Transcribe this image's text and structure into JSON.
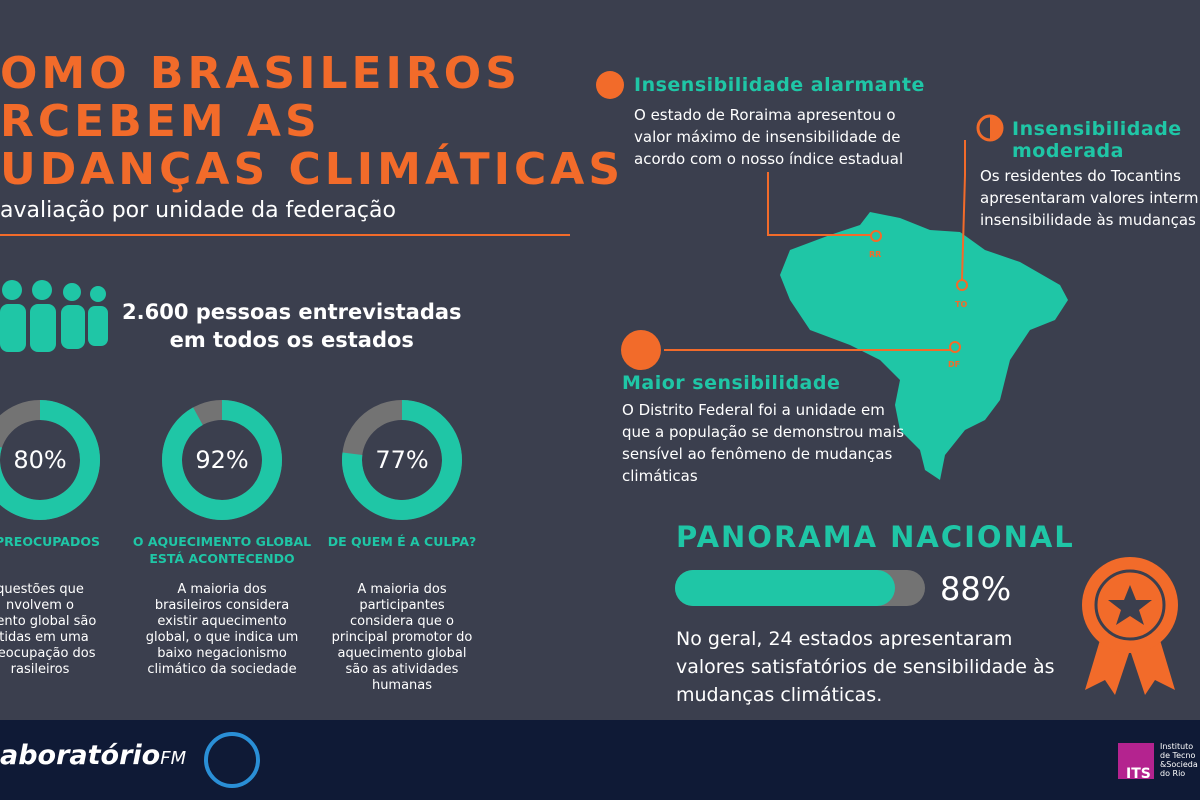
{
  "header": {
    "title_lines": [
      "OMO BRASILEIROS",
      "RCEBEM AS",
      "UDANÇAS CLIMÁTICAS"
    ],
    "subtitle": "avaliação por unidade da federação"
  },
  "survey": {
    "lines": [
      "2.600 pessoas entrevistadas",
      "em todos os estados"
    ]
  },
  "stats": [
    {
      "value": 80,
      "label": "80%",
      "title_lines": [
        "O PREOCUPADOS"
      ],
      "text_lines": [
        "questões que",
        "nvolvem o",
        "mento global são",
        "etidas em uma",
        "preocupação dos",
        "rasileiros"
      ]
    },
    {
      "value": 92,
      "label": "92%",
      "title_lines": [
        "O AQUECIMENTO GLOBAL",
        "ESTÁ ACONTECENDO"
      ],
      "text_lines": [
        "A maioria dos",
        "brasileiros considera",
        "existir aquecimento",
        "global, o que indica um",
        "baixo negacionismo",
        "climático da sociedade"
      ]
    },
    {
      "value": 77,
      "label": "77%",
      "title_lines": [
        "DE QUEM É A CULPA?"
      ],
      "text_lines": [
        "A maioria dos",
        "participantes",
        "considera que o",
        "principal promotor do",
        "aquecimento global",
        "são as atividades",
        "humanas"
      ]
    }
  ],
  "callouts": [
    {
      "title_lines": [
        "Insensibilidade alarmante"
      ],
      "text_lines": [
        "O estado de Roraima apresentou o",
        "valor máximo de insensibilidade de",
        "acordo com o nosso índice estadual"
      ]
    },
    {
      "title_lines": [
        "Insensibilidade",
        "moderada"
      ],
      "text_lines": [
        "Os residentes do Tocantins",
        "apresentaram valores interm",
        "insensibilidade às mudanças c"
      ]
    },
    {
      "title_lines": [
        "Maior sensibilidade"
      ],
      "text_lines": [
        "O Distrito Federal foi a unidade em",
        "que a população se demonstrou mais",
        "sensível ao fenômeno de mudanças",
        "climáticas"
      ]
    }
  ],
  "map": {
    "pins": [
      "RR",
      "TO",
      "DF"
    ]
  },
  "panorama": {
    "title": "PANORAMA NACIONAL",
    "value": 88,
    "label": "88%",
    "text_lines": [
      "No geral, 24 estados apresentaram",
      "valores satisfatórios de sensibilidade às",
      "mudanças climáticas."
    ]
  },
  "footer": {
    "brand": "aboratório",
    "brand_suffix": "FM",
    "its": "ITS",
    "its_lines": [
      "Instituto",
      "de Tecno",
      "&Socieda",
      "do Rio"
    ]
  }
}
